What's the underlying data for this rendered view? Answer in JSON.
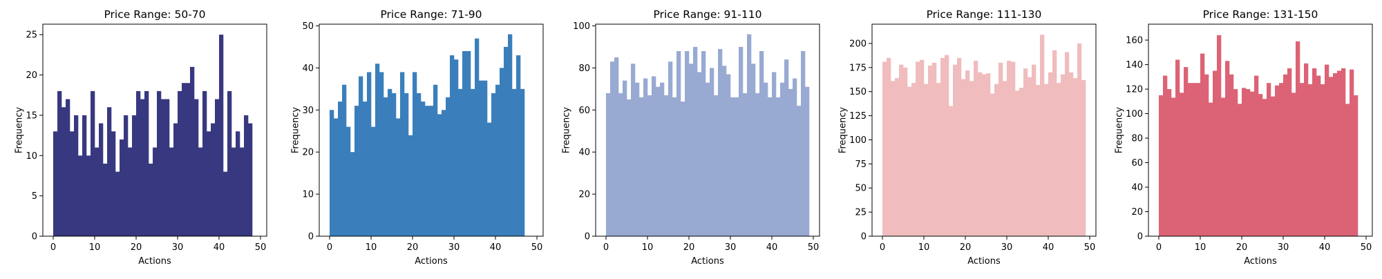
{
  "chart_data": [
    {
      "type": "bar",
      "title": "Price Range: 50-70",
      "xlabel": "Actions",
      "ylabel": "Frequency",
      "color": "#383880",
      "xlim": [
        -2.5,
        51.5
      ],
      "ylim": [
        0,
        26.3
      ],
      "xticks": [
        0,
        10,
        20,
        30,
        40,
        50
      ],
      "yticks": [
        0,
        5,
        10,
        15,
        20,
        25
      ],
      "x": [
        0,
        1,
        2,
        3,
        4,
        5,
        6,
        7,
        8,
        9,
        10,
        11,
        12,
        13,
        14,
        15,
        16,
        17,
        18,
        19,
        20,
        21,
        22,
        23,
        24,
        25,
        26,
        27,
        28,
        29,
        30,
        31,
        32,
        33,
        34,
        35,
        36,
        37,
        38,
        39,
        40,
        41,
        42,
        43,
        44,
        45,
        46,
        47,
        48
      ],
      "values": [
        13,
        18,
        16,
        17,
        13,
        15,
        10,
        15,
        10,
        18,
        11,
        14,
        9,
        16,
        13,
        8,
        12,
        15,
        11,
        15,
        18,
        17,
        18,
        9,
        11,
        18,
        17,
        17,
        11,
        14,
        18,
        19,
        19,
        21,
        17,
        11,
        18,
        13,
        14,
        17,
        25,
        8,
        18,
        11,
        13,
        11,
        15,
        14,
        0
      ]
    },
    {
      "type": "bar",
      "title": "Price Range: 71-90",
      "xlabel": "Actions",
      "ylabel": "Frequency",
      "color": "#3a7fbb",
      "xlim": [
        -2.5,
        51.5
      ],
      "ylim": [
        0,
        50.4
      ],
      "xticks": [
        0,
        10,
        20,
        30,
        40,
        50
      ],
      "yticks": [
        0,
        10,
        20,
        30,
        40,
        50
      ],
      "x": [
        0,
        1,
        2,
        3,
        4,
        5,
        6,
        7,
        8,
        9,
        10,
        11,
        12,
        13,
        14,
        15,
        16,
        17,
        18,
        19,
        20,
        21,
        22,
        23,
        24,
        25,
        26,
        27,
        28,
        29,
        30,
        31,
        32,
        33,
        34,
        35,
        36,
        37,
        38,
        39,
        40,
        41,
        42,
        43,
        44,
        45,
        46,
        47,
        48
      ],
      "values": [
        30,
        28,
        32,
        36,
        26,
        20,
        31,
        38,
        32,
        39,
        26,
        41,
        39,
        33,
        35,
        34,
        28,
        39,
        34,
        24,
        39,
        34,
        32,
        31,
        31,
        36,
        29,
        30,
        33,
        43,
        42,
        35,
        44,
        44,
        35,
        47,
        37,
        37,
        27,
        34,
        36,
        40,
        45,
        48,
        35,
        43,
        35,
        0,
        0
      ]
    },
    {
      "type": "bar",
      "title": "Price Range: 91-110",
      "xlabel": "Actions",
      "ylabel": "Frequency",
      "color": "#98aad2",
      "xlim": [
        -2.5,
        51.5
      ],
      "ylim": [
        0,
        100.8
      ],
      "xticks": [
        0,
        10,
        20,
        30,
        40,
        50
      ],
      "yticks": [
        0,
        20,
        40,
        60,
        80,
        100
      ],
      "x": [
        0,
        1,
        2,
        3,
        4,
        5,
        6,
        7,
        8,
        9,
        10,
        11,
        12,
        13,
        14,
        15,
        16,
        17,
        18,
        19,
        20,
        21,
        22,
        23,
        24,
        25,
        26,
        27,
        28,
        29,
        30,
        31,
        32,
        33,
        34,
        35,
        36,
        37,
        38,
        39,
        40,
        41,
        42,
        43,
        44,
        45,
        46,
        47,
        48
      ],
      "values": [
        68,
        83,
        85,
        68,
        74,
        65,
        82,
        73,
        66,
        75,
        67,
        76,
        71,
        73,
        67,
        83,
        66,
        88,
        64,
        88,
        82,
        90,
        78,
        88,
        73,
        80,
        67,
        89,
        81,
        77,
        66,
        66,
        90,
        68,
        96,
        82,
        68,
        88,
        73,
        66,
        78,
        66,
        73,
        84,
        70,
        75,
        62,
        88,
        71
      ]
    },
    {
      "type": "bar",
      "title": "Price Range: 111-130",
      "xlabel": "Actions",
      "ylabel": "Frequency",
      "color": "#f0bcbd",
      "xlim": [
        -2.5,
        51.5
      ],
      "ylim": [
        0,
        220
      ],
      "xticks": [
        0,
        10,
        20,
        30,
        40,
        50
      ],
      "yticks": [
        0,
        25,
        50,
        75,
        100,
        125,
        150,
        175,
        200
      ],
      "x": [
        0,
        1,
        2,
        3,
        4,
        5,
        6,
        7,
        8,
        9,
        10,
        11,
        12,
        13,
        14,
        15,
        16,
        17,
        18,
        19,
        20,
        21,
        22,
        23,
        24,
        25,
        26,
        27,
        28,
        29,
        30,
        31,
        32,
        33,
        34,
        35,
        36,
        37,
        38,
        39,
        40,
        41,
        42,
        43,
        44,
        45,
        46,
        47,
        48
      ],
      "values": [
        181,
        185,
        161,
        164,
        178,
        175,
        155,
        159,
        181,
        183,
        158,
        177,
        180,
        159,
        185,
        188,
        135,
        178,
        185,
        163,
        172,
        161,
        182,
        170,
        168,
        169,
        148,
        158,
        180,
        161,
        182,
        181,
        151,
        154,
        174,
        165,
        178,
        157,
        209,
        158,
        170,
        193,
        159,
        168,
        191,
        170,
        164,
        200,
        162
      ]
    },
    {
      "type": "bar",
      "title": "Price Range: 131-150",
      "xlabel": "Actions",
      "ylabel": "Frequency",
      "color": "#dc6375",
      "xlim": [
        -2.5,
        51.5
      ],
      "ylim": [
        0,
        173
      ],
      "xticks": [
        0,
        10,
        20,
        30,
        40,
        50
      ],
      "yticks": [
        0,
        20,
        40,
        60,
        80,
        100,
        120,
        140,
        160
      ],
      "x": [
        0,
        1,
        2,
        3,
        4,
        5,
        6,
        7,
        8,
        9,
        10,
        11,
        12,
        13,
        14,
        15,
        16,
        17,
        18,
        19,
        20,
        21,
        22,
        23,
        24,
        25,
        26,
        27,
        28,
        29,
        30,
        31,
        32,
        33,
        34,
        35,
        36,
        37,
        38,
        39,
        40,
        41,
        42,
        43,
        44,
        45,
        46,
        47,
        48
      ],
      "values": [
        115,
        131,
        120,
        113,
        144,
        117,
        138,
        125,
        125,
        125,
        149,
        132,
        109,
        135,
        164,
        113,
        143,
        132,
        120,
        108,
        121,
        120,
        118,
        131,
        116,
        112,
        125,
        114,
        123,
        125,
        132,
        137,
        117,
        159,
        125,
        141,
        124,
        137,
        131,
        124,
        140,
        130,
        133,
        135,
        137,
        108,
        136,
        115,
        0
      ]
    }
  ]
}
